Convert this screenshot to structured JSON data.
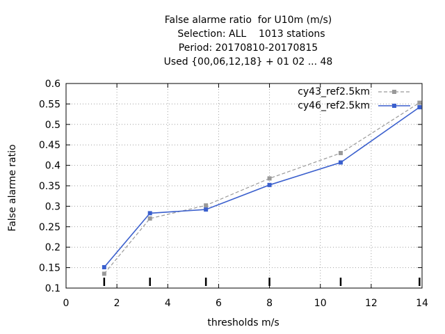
{
  "chart_data": {
    "type": "line",
    "title_lines": [
      "False alarme ratio  for U10m (m/s)",
      "  Selection: ALL    1013 stations",
      "Period: 20170810-20170815",
      "Used {00,06,12,18} + 01 02 ... 48"
    ],
    "xlabel": "thresholds m/s",
    "ylabel": "False alarme ratio",
    "xlim": [
      0,
      14
    ],
    "ylim": [
      0.1,
      0.6
    ],
    "x_ticks": [
      0,
      2,
      4,
      6,
      8,
      10,
      12,
      14
    ],
    "y_ticks": [
      0.1,
      0.15,
      0.2,
      0.25,
      0.3,
      0.35,
      0.4,
      0.45,
      0.5,
      0.55,
      0.6
    ],
    "grid": true,
    "legend_position": "top-right",
    "threshold_markers": [
      1.5,
      3.3,
      5.5,
      8,
      10.8,
      13.9
    ],
    "series": [
      {
        "name": "cy43_ref2.5km",
        "color": "#999999",
        "style": "dashed",
        "x": [
          1.5,
          3.3,
          5.5,
          8,
          10.8,
          13.9
        ],
        "y": [
          0.135,
          0.27,
          0.302,
          0.368,
          0.43,
          0.553
        ]
      },
      {
        "name": "cy46_ref2.5km",
        "color": "#3a5fcd",
        "style": "solid",
        "x": [
          1.5,
          3.3,
          5.5,
          8,
          10.8,
          13.9
        ],
        "y": [
          0.151,
          0.283,
          0.292,
          0.352,
          0.407,
          0.542
        ]
      }
    ]
  }
}
